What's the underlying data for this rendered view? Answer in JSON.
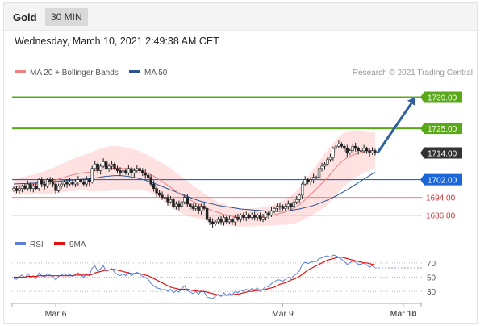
{
  "header": {
    "instrument": "Gold",
    "period": "30 MIN"
  },
  "timestamp": "Wednesday, March 10, 2021 2:49:38 AM CET",
  "legend_main": [
    {
      "label": "MA 20 + Bollinger Bands",
      "color": "#f08080"
    },
    {
      "label": "MA 50",
      "color": "#2c5592"
    }
  ],
  "credit": "Research © 2021 Trading Central",
  "legend_rsi": [
    {
      "label": "RSI",
      "color": "#5b7fd6"
    },
    {
      "label": "9MA",
      "color": "#e01010"
    }
  ],
  "chart_data": {
    "type": "candlestick",
    "price_axis": {
      "min": 1679,
      "max": 1745
    },
    "levels": [
      {
        "value": 1739.0,
        "label": "1739.00",
        "color": "#58a818",
        "kind": "target"
      },
      {
        "value": 1725.0,
        "label": "1725.00",
        "color": "#58a818",
        "kind": "resistance"
      },
      {
        "value": 1714.0,
        "label": "1714.00",
        "color": "#333333",
        "kind": "last"
      },
      {
        "value": 1702.0,
        "label": "1702.00",
        "color": "#1a66d6",
        "kind": "pivot"
      },
      {
        "value": 1694.0,
        "label": "1694.00",
        "color": "#d63232",
        "kind": "support"
      },
      {
        "value": 1686.0,
        "label": "1686.00",
        "color": "#d63232",
        "kind": "support"
      }
    ],
    "forecast_arrow": {
      "from": 1714,
      "to": 1739,
      "color": "#2e5fa0"
    },
    "x_ticks": [
      "Mar 6",
      "Mar 9",
      "Mar 10",
      "Mar 14"
    ],
    "x_tick_index": [
      15,
      96,
      177,
      208
    ],
    "closes": [
      1698,
      1697,
      1698,
      1699,
      1698,
      1700,
      1698,
      1699,
      1698,
      1702,
      1700,
      1699,
      1702,
      1701,
      1700,
      1697,
      1699,
      1700,
      1701,
      1700,
      1701,
      1700,
      1701,
      1702,
      1701,
      1700,
      1702,
      1701,
      1707,
      1709,
      1706,
      1708,
      1710,
      1707,
      1708,
      1709,
      1707,
      1706,
      1705,
      1706,
      1705,
      1707,
      1705,
      1706,
      1707,
      1706,
      1705,
      1704,
      1703,
      1700,
      1698,
      1696,
      1695,
      1694,
      1694,
      1692,
      1693,
      1690,
      1691,
      1690,
      1692,
      1694,
      1691,
      1690,
      1689,
      1690,
      1688,
      1690,
      1689,
      1684,
      1683,
      1682,
      1683,
      1684,
      1683,
      1685,
      1683,
      1684,
      1683,
      1685,
      1684,
      1686,
      1685,
      1686,
      1685,
      1686,
      1685,
      1686,
      1684,
      1685,
      1687,
      1686,
      1688,
      1689,
      1690,
      1690,
      1689,
      1690,
      1691,
      1690,
      1692,
      1693,
      1695,
      1700,
      1702,
      1701,
      1702,
      1703,
      1703,
      1707,
      1708,
      1709,
      1711,
      1712,
      1716,
      1717,
      1718,
      1717,
      1716,
      1714,
      1715,
      1717,
      1716,
      1715,
      1715,
      1716,
      1715,
      1714,
      1715,
      1714
    ],
    "ma20": [
      1698.5,
      1698.7,
      1699,
      1699.2,
      1699.3,
      1699.5,
      1699.6,
      1699.8,
      1700,
      1700.2,
      1700.4,
      1700.6,
      1700.9,
      1701.2,
      1701.5,
      1701.8,
      1702.2,
      1702.6,
      1703,
      1703.4,
      1703.8,
      1704.1,
      1704.4,
      1704.7,
      1704.9,
      1705.1,
      1705.2,
      1705.3,
      1705.6,
      1705.9,
      1706.1,
      1706.4,
      1706.6,
      1706.8,
      1707,
      1707.1,
      1707.2,
      1707.2,
      1707.1,
      1707,
      1706.9,
      1706.8,
      1706.7,
      1706.5,
      1706.3,
      1706,
      1705.7,
      1705.3,
      1704.8,
      1704.2,
      1703.5,
      1702.8,
      1702,
      1701.2,
      1700.3,
      1699.4,
      1698.5,
      1697.6,
      1696.7,
      1695.8,
      1695,
      1694.3,
      1693.6,
      1692.9,
      1692.2,
      1691.6,
      1691,
      1690.4,
      1689.8,
      1689.1,
      1688.5,
      1688,
      1687.6,
      1687.2,
      1686.8,
      1686.4,
      1686,
      1685.8,
      1685.5,
      1685.3,
      1685.1,
      1685,
      1684.9,
      1684.9,
      1684.9,
      1685,
      1685.1,
      1685.2,
      1685.3,
      1685.4,
      1685.5,
      1685.7,
      1685.9,
      1686.2,
      1686.5,
      1686.8,
      1687.1,
      1687.5,
      1688,
      1688.5,
      1689.1,
      1689.8,
      1690.7,
      1691.8,
      1693,
      1694.2,
      1695.4,
      1696.6,
      1697.8,
      1699.1,
      1700.4,
      1701.7,
      1703,
      1704.4,
      1705.9,
      1707.4,
      1708.8,
      1710,
      1711,
      1711.8,
      1712.5,
      1713.1,
      1713.5,
      1713.9,
      1714.2,
      1714.5,
      1714.7,
      1714.9,
      1715,
      1715
    ],
    "ma50": [
      1700,
      1700.1,
      1700.1,
      1700.2,
      1700.2,
      1700.3,
      1700.3,
      1700.4,
      1700.5,
      1700.6,
      1700.7,
      1700.8,
      1700.9,
      1701,
      1701.1,
      1701.2,
      1701.3,
      1701.4,
      1701.5,
      1701.6,
      1701.7,
      1701.8,
      1701.9,
      1702,
      1702.1,
      1702.2,
      1702.3,
      1702.4,
      1702.5,
      1702.7,
      1702.9,
      1703.1,
      1703.3,
      1703.5,
      1703.6,
      1703.7,
      1703.8,
      1703.8,
      1703.8,
      1703.7,
      1703.6,
      1703.4,
      1703.2,
      1703,
      1702.7,
      1702.4,
      1702.1,
      1701.7,
      1701.3,
      1700.9,
      1700.4,
      1699.9,
      1699.4,
      1698.9,
      1698.4,
      1697.9,
      1697.4,
      1696.9,
      1696.4,
      1695.9,
      1695.4,
      1694.9,
      1694.4,
      1693.9,
      1693.4,
      1693,
      1692.6,
      1692.2,
      1691.9,
      1691.6,
      1691.3,
      1691,
      1690.7,
      1690.4,
      1690.2,
      1690,
      1689.8,
      1689.6,
      1689.4,
      1689.2,
      1689,
      1688.8,
      1688.7,
      1688.6,
      1688.5,
      1688.4,
      1688.3,
      1688.2,
      1688.1,
      1688,
      1687.9,
      1687.8,
      1687.7,
      1687.7,
      1687.7,
      1687.7,
      1687.8,
      1687.9,
      1688,
      1688.2,
      1688.4,
      1688.6,
      1688.8,
      1689.1,
      1689.4,
      1689.7,
      1690,
      1690.4,
      1690.8,
      1691.3,
      1691.8,
      1692.3,
      1692.8,
      1693.4,
      1694,
      1694.6,
      1695.3,
      1696,
      1696.7,
      1697.4,
      1698.2,
      1699,
      1699.8,
      1700.6,
      1701.4,
      1702.2,
      1703,
      1703.8,
      1704.6,
      1705.3
    ],
    "bb_width": [
      3.5,
      3.6,
      3.8,
      4,
      4.1,
      4.2,
      4.3,
      4.4,
      4.6,
      4.8,
      5,
      5.2,
      5.4,
      5.6,
      5.8,
      6,
      6.2,
      6.4,
      6.6,
      6.8,
      7,
      7.2,
      7.4,
      7.6,
      7.8,
      8,
      8.3,
      8.6,
      8.9,
      9.2,
      9.4,
      9.6,
      9.8,
      9.9,
      10,
      10,
      10,
      9.9,
      9.8,
      9.7,
      9.6,
      9.5,
      9.3,
      9.1,
      8.9,
      8.7,
      8.5,
      8.3,
      8.2,
      8.1,
      8.1,
      8.1,
      8.2,
      8.3,
      8.4,
      8.5,
      8.6,
      8.6,
      8.5,
      8.4,
      8.2,
      8,
      7.8,
      7.5,
      7.2,
      6.9,
      6.6,
      6.3,
      6,
      5.7,
      5.5,
      5.3,
      5.1,
      4.9,
      4.8,
      4.7,
      4.6,
      4.5,
      4.4,
      4.3,
      4.2,
      4.1,
      4,
      4,
      4,
      4,
      4,
      4.1,
      4.1,
      4.2,
      4.3,
      4.4,
      4.6,
      4.8,
      5,
      5.2,
      5.5,
      5.8,
      6.1,
      6.4,
      6.8,
      7.2,
      7.7,
      8.2,
      8.7,
      9.2,
      9.7,
      10.2,
      10.7,
      11.2,
      11.6,
      12,
      12.2,
      12.4,
      12.5,
      12.5,
      12.4,
      12.2,
      12,
      11.7,
      11.4,
      11,
      10.6,
      10.2,
      9.8,
      9.4,
      9,
      8.6,
      8.3,
      8,
      7.8
    ],
    "rsi_axis": {
      "min": 20,
      "max": 80,
      "ticks": [
        70,
        50,
        30
      ]
    },
    "rsi": [
      48,
      47,
      51,
      53,
      49,
      55,
      50,
      52,
      48,
      56,
      52,
      50,
      55,
      53,
      51,
      46,
      51,
      53,
      55,
      52,
      54,
      51,
      54,
      56,
      53,
      50,
      55,
      52,
      63,
      66,
      58,
      62,
      66,
      58,
      60,
      62,
      57,
      54,
      52,
      55,
      52,
      57,
      52,
      55,
      57,
      54,
      51,
      49,
      47,
      41,
      38,
      35,
      34,
      32,
      33,
      30,
      33,
      28,
      31,
      29,
      34,
      38,
      31,
      29,
      27,
      30,
      26,
      31,
      29,
      22,
      21,
      20,
      23,
      26,
      23,
      28,
      24,
      27,
      25,
      30,
      28,
      32,
      30,
      33,
      31,
      34,
      32,
      35,
      30,
      33,
      38,
      36,
      41,
      43,
      46,
      46,
      44,
      47,
      50,
      48,
      52,
      55,
      59,
      68,
      71,
      69,
      71,
      72,
      72,
      76,
      77,
      79,
      80,
      78,
      81,
      80,
      78,
      75,
      72,
      68,
      70,
      73,
      71,
      68,
      68,
      70,
      67,
      64,
      66,
      63
    ],
    "rsi_ma": [
      50,
      50,
      50,
      50,
      50,
      51,
      51,
      51,
      51,
      52,
      52,
      52,
      52,
      52,
      52,
      52,
      52,
      52,
      52,
      52,
      52,
      52,
      53,
      53,
      53,
      53,
      53,
      53,
      54,
      56,
      57,
      58,
      59,
      60,
      60,
      61,
      61,
      60,
      59,
      58,
      57,
      56,
      55,
      55,
      55,
      55,
      54,
      53,
      52,
      50,
      48,
      46,
      44,
      42,
      40,
      38,
      36,
      35,
      34,
      33,
      33,
      33,
      33,
      32,
      31,
      31,
      30,
      30,
      30,
      29,
      28,
      27,
      26,
      25,
      25,
      25,
      25,
      25,
      25,
      26,
      26,
      27,
      28,
      29,
      30,
      30,
      31,
      31,
      32,
      32,
      33,
      34,
      35,
      36,
      38,
      40,
      41,
      42,
      44,
      46,
      47,
      49,
      51,
      54,
      57,
      60,
      62,
      64,
      66,
      68,
      70,
      72,
      74,
      75,
      76,
      77,
      78,
      78,
      77,
      76,
      75,
      74,
      73,
      72,
      71,
      70,
      70,
      69,
      68,
      67
    ]
  }
}
